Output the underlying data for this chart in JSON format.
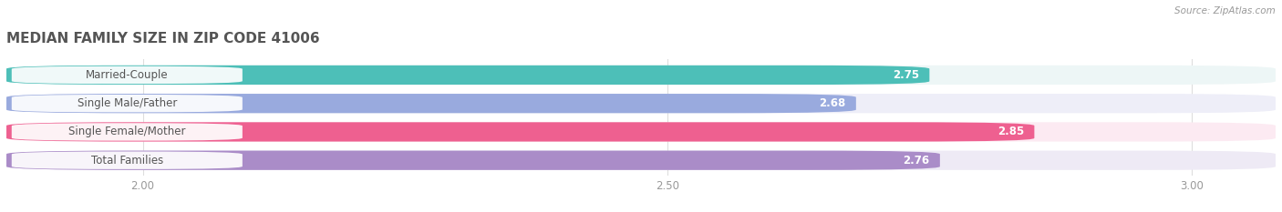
{
  "title": "MEDIAN FAMILY SIZE IN ZIP CODE 41006",
  "source": "Source: ZipAtlas.com",
  "categories": [
    "Married-Couple",
    "Single Male/Father",
    "Single Female/Mother",
    "Total Families"
  ],
  "values": [
    2.75,
    2.68,
    2.85,
    2.76
  ],
  "bar_colors": [
    "#4DBFB8",
    "#99AADE",
    "#EE6090",
    "#AA8CC8"
  ],
  "bar_bg_colors": [
    "#EDF6F6",
    "#EEEEF8",
    "#FCEAF2",
    "#EEEAF5"
  ],
  "xlim": [
    1.87,
    3.08
  ],
  "xticks": [
    2.0,
    2.5,
    3.0
  ],
  "xtick_labels": [
    "2.00",
    "2.50",
    "3.00"
  ],
  "label_fontsize": 8.5,
  "value_fontsize": 8.5,
  "title_fontsize": 11,
  "background_color": "#FFFFFF",
  "bar_height": 0.68,
  "rounding_size": 0.12
}
